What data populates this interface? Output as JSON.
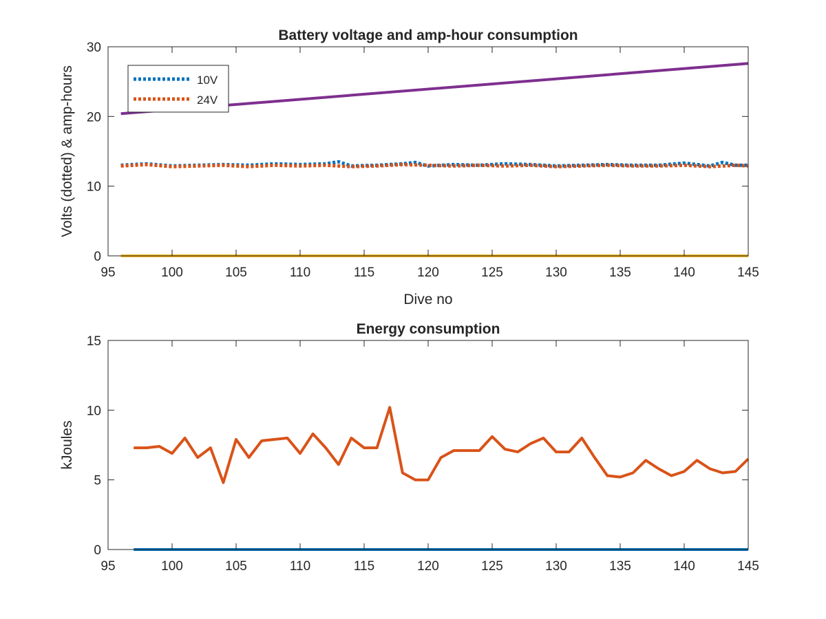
{
  "chart_data": [
    {
      "type": "line",
      "title": "Battery voltage and amp-hour consumption",
      "xlabel": "Dive no",
      "ylabel": "Volts (dotted) & amp-hours",
      "xlim": [
        95,
        145
      ],
      "ylim": [
        0,
        30
      ],
      "xticks": [
        95,
        100,
        105,
        110,
        115,
        120,
        125,
        130,
        135,
        140,
        145
      ],
      "yticks": [
        0,
        10,
        20,
        30
      ],
      "xtick_labels": [
        "95",
        "100",
        "105",
        "110",
        "115",
        "120",
        "125",
        "130",
        "135",
        "140",
        "145"
      ],
      "ytick_labels": [
        "0",
        "10",
        "20",
        "30"
      ],
      "legend": {
        "location": "top-left",
        "entries": [
          "10V",
          "24V"
        ]
      },
      "series": [
        {
          "name": "10V",
          "style": "dotted",
          "color": "#0072BD",
          "x": [
            96,
            98,
            100,
            102,
            104,
            106,
            108,
            110,
            112,
            113,
            114,
            116,
            118,
            119,
            120,
            122,
            124,
            126,
            128,
            130,
            132,
            134,
            136,
            138,
            140,
            142,
            143,
            144,
            145
          ],
          "y": [
            13.0,
            13.2,
            12.9,
            13.0,
            13.1,
            13.0,
            13.2,
            13.1,
            13.2,
            13.5,
            12.9,
            13.0,
            13.2,
            13.4,
            12.9,
            13.1,
            13.0,
            13.2,
            13.1,
            12.9,
            13.0,
            13.1,
            13.0,
            13.0,
            13.3,
            12.9,
            13.4,
            13.0,
            13.0
          ]
        },
        {
          "name": "24V",
          "style": "dotted",
          "color": "#D95319",
          "x": [
            96,
            98,
            100,
            102,
            104,
            106,
            108,
            110,
            112,
            114,
            116,
            118,
            120,
            122,
            124,
            126,
            128,
            130,
            132,
            134,
            136,
            138,
            140,
            142,
            144,
            145
          ],
          "y": [
            12.9,
            13.1,
            12.8,
            12.9,
            13.0,
            12.8,
            13.0,
            12.9,
            13.0,
            12.8,
            12.9,
            13.1,
            13.0,
            12.9,
            13.0,
            12.9,
            13.0,
            12.8,
            12.9,
            13.0,
            12.9,
            12.9,
            13.0,
            12.8,
            13.0,
            12.9
          ]
        },
        {
          "style": "solid",
          "color": "#7E2F8E",
          "x": [
            96,
            145
          ],
          "y": [
            20.4,
            27.6
          ]
        },
        {
          "style": "solid",
          "color": "#EDB120",
          "x": [
            96,
            145
          ],
          "y": [
            0,
            0
          ]
        }
      ]
    },
    {
      "type": "line",
      "title": "Energy consumption",
      "xlabel": "",
      "ylabel": "kJoules",
      "xlim": [
        95,
        145
      ],
      "ylim": [
        0,
        15
      ],
      "xticks": [
        95,
        100,
        105,
        110,
        115,
        120,
        125,
        130,
        135,
        140,
        145
      ],
      "yticks": [
        0,
        5,
        10,
        15
      ],
      "xtick_labels": [
        "95",
        "100",
        "105",
        "110",
        "115",
        "120",
        "125",
        "130",
        "135",
        "140",
        "145"
      ],
      "ytick_labels": [
        "0",
        "5",
        "10",
        "15"
      ],
      "series": [
        {
          "style": "solid",
          "color": "#D95319",
          "x": [
            97,
            98,
            99,
            100,
            101,
            102,
            103,
            104,
            105,
            106,
            107,
            108,
            109,
            110,
            111,
            112,
            113,
            114,
            115,
            116,
            117,
            118,
            119,
            120,
            121,
            122,
            123,
            124,
            125,
            126,
            127,
            128,
            129,
            130,
            131,
            132,
            133,
            134,
            135,
            136,
            137,
            138,
            139,
            140,
            141,
            142,
            143,
            144,
            145
          ],
          "y": [
            7.3,
            7.3,
            7.4,
            6.9,
            8.0,
            6.6,
            7.3,
            4.8,
            7.9,
            6.6,
            7.8,
            7.9,
            8.0,
            6.9,
            8.3,
            7.3,
            6.1,
            8.0,
            7.3,
            7.3,
            10.2,
            5.5,
            5.0,
            5.0,
            6.6,
            7.1,
            7.1,
            7.1,
            8.1,
            7.2,
            7.0,
            7.6,
            8.0,
            7.0,
            7.0,
            8.0,
            6.6,
            5.3,
            5.2,
            5.5,
            6.4,
            5.8,
            5.3,
            5.6,
            6.4,
            5.8,
            5.5,
            5.6,
            6.5
          ]
        },
        {
          "style": "solid",
          "color": "#0072BD",
          "x": [
            97,
            145
          ],
          "y": [
            0,
            0
          ]
        }
      ]
    }
  ]
}
